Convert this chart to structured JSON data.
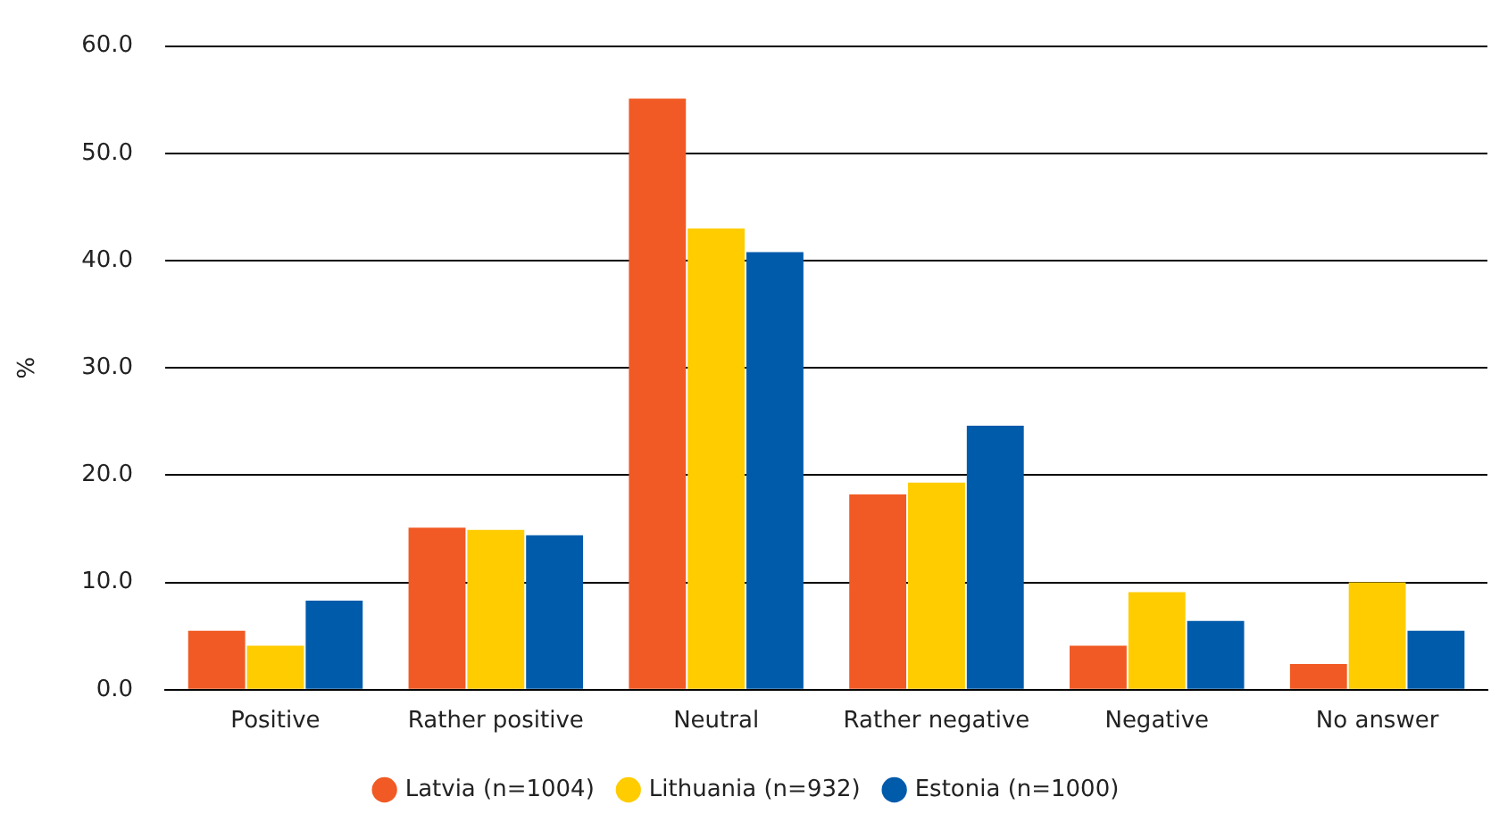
{
  "chart_data": {
    "type": "bar",
    "ylabel": "%",
    "categories": [
      "Positive",
      "Rather positive",
      "Neutral",
      "Rather negative",
      "Negative",
      "No answer"
    ],
    "series": [
      {
        "name": "Latvia (n=1004)",
        "color": "#f15a24",
        "values": [
          5.5,
          15.1,
          55.1,
          18.2,
          4.1,
          2.4
        ]
      },
      {
        "name": "Lithuania (n=932)",
        "color": "#ffcc00",
        "values": [
          4.1,
          14.9,
          43.0,
          19.3,
          9.1,
          10.0
        ]
      },
      {
        "name": "Estonia (n=1000)",
        "color": "#005bab",
        "values": [
          8.3,
          14.4,
          40.8,
          24.6,
          6.4,
          5.5
        ]
      }
    ],
    "ylim": [
      0,
      60
    ],
    "yticks": [
      {
        "value": 0,
        "label": "0.0"
      },
      {
        "value": 10,
        "label": "10.0"
      },
      {
        "value": 20,
        "label": "20.0"
      },
      {
        "value": 30,
        "label": "30.0"
      },
      {
        "value": 40,
        "label": "40.0"
      },
      {
        "value": 50,
        "label": "50.0"
      },
      {
        "value": 60,
        "label": "60.0"
      }
    ],
    "grid": "y",
    "legend": "bottom",
    "marker": "circle"
  }
}
